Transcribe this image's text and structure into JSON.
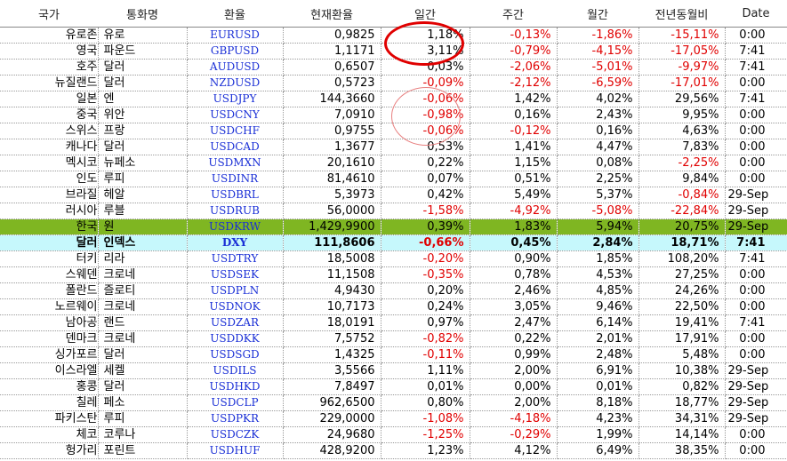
{
  "headers": [
    "국가",
    "통화명",
    "환율",
    "현재환율",
    "일간",
    "주간",
    "월간",
    "전년동월비",
    "Date"
  ],
  "rows": [
    {
      "country": "유로존",
      "currency": "유로",
      "ticker": "EURUSD",
      "rate": "0,9825",
      "daily": "1,18%",
      "weekly": "-0,13%",
      "monthly": "-1,86%",
      "yoy": "-15,11%",
      "date": "0:00"
    },
    {
      "country": "영국",
      "currency": "파운드",
      "ticker": "GBPUSD",
      "rate": "1,1171",
      "daily": "3,11%",
      "weekly": "-0,79%",
      "monthly": "-4,15%",
      "yoy": "-17,05%",
      "date": "7:41"
    },
    {
      "country": "호주",
      "currency": "달러",
      "ticker": "AUDUSD",
      "rate": "0,6507",
      "daily": "0,03%",
      "weekly": "-2,06%",
      "monthly": "-5,01%",
      "yoy": "-9,97%",
      "date": "7:41"
    },
    {
      "country": "뉴질랜드",
      "currency": "달러",
      "ticker": "NZDUSD",
      "rate": "0,5723",
      "daily": "-0,09%",
      "weekly": "-2,12%",
      "monthly": "-6,59%",
      "yoy": "-17,01%",
      "date": "0:00"
    },
    {
      "country": "일본",
      "currency": "엔",
      "ticker": "USDJPY",
      "rate": "144,3660",
      "daily": "-0,06%",
      "weekly": "1,42%",
      "monthly": "4,02%",
      "yoy": "29,56%",
      "date": "7:41"
    },
    {
      "country": "중국",
      "currency": "위안",
      "ticker": "USDCNY",
      "rate": "7,0910",
      "daily": "-0,98%",
      "weekly": "0,16%",
      "monthly": "2,43%",
      "yoy": "9,95%",
      "date": "0:00"
    },
    {
      "country": "스위스",
      "currency": "프랑",
      "ticker": "USDCHF",
      "rate": "0,9755",
      "daily": "-0,06%",
      "weekly": "-0,12%",
      "monthly": "0,16%",
      "yoy": "4,63%",
      "date": "0:00"
    },
    {
      "country": "캐나다",
      "currency": "달러",
      "ticker": "USDCAD",
      "rate": "1,3677",
      "daily": "0,53%",
      "weekly": "1,41%",
      "monthly": "4,47%",
      "yoy": "7,83%",
      "date": "0:00"
    },
    {
      "country": "멕시코",
      "currency": "뉴페소",
      "ticker": "USDMXN",
      "rate": "20,1610",
      "daily": "0,22%",
      "weekly": "1,15%",
      "monthly": "0,08%",
      "yoy": "-2,25%",
      "date": "0:00"
    },
    {
      "country": "인도",
      "currency": "루피",
      "ticker": "USDINR",
      "rate": "81,4610",
      "daily": "0,07%",
      "weekly": "0,51%",
      "monthly": "2,25%",
      "yoy": "9,84%",
      "date": "0:00"
    },
    {
      "country": "브라질",
      "currency": "헤알",
      "ticker": "USDBRL",
      "rate": "5,3973",
      "daily": "0,42%",
      "weekly": "5,49%",
      "monthly": "5,37%",
      "yoy": "-0,84%",
      "date": "29-Sep"
    },
    {
      "country": "러시아",
      "currency": "루블",
      "ticker": "USDRUB",
      "rate": "56,0000",
      "daily": "-1,58%",
      "weekly": "-4,92%",
      "monthly": "-5,08%",
      "yoy": "-22,84%",
      "date": "29-Sep"
    },
    {
      "country": "한국",
      "currency": "원",
      "ticker": "USDKRW",
      "rate": "1,429,9900",
      "daily": "0,39%",
      "weekly": "1,83%",
      "monthly": "5,94%",
      "yoy": "20,75%",
      "date": "29-Sep",
      "highlight": "krw"
    },
    {
      "country": "달러",
      "currency": "인덱스",
      "ticker": "DXY",
      "rate": "111,8606",
      "daily": "-0,66%",
      "weekly": "0,45%",
      "monthly": "2,84%",
      "yoy": "18,71%",
      "date": "7:41",
      "highlight": "dxy"
    },
    {
      "country": "터키",
      "currency": "리라",
      "ticker": "USDTRY",
      "rate": "18,5008",
      "daily": "-0,20%",
      "weekly": "0,90%",
      "monthly": "1,85%",
      "yoy": "108,20%",
      "date": "7:41"
    },
    {
      "country": "스웨덴",
      "currency": "크로네",
      "ticker": "USDSEK",
      "rate": "11,1508",
      "daily": "-0,35%",
      "weekly": "0,78%",
      "monthly": "4,53%",
      "yoy": "27,25%",
      "date": "0:00"
    },
    {
      "country": "폴란드",
      "currency": "즐로티",
      "ticker": "USDPLN",
      "rate": "4,9430",
      "daily": "0,20%",
      "weekly": "2,46%",
      "monthly": "4,85%",
      "yoy": "24,26%",
      "date": "0:00"
    },
    {
      "country": "노르웨이",
      "currency": "크로네",
      "ticker": "USDNOK",
      "rate": "10,7173",
      "daily": "0,24%",
      "weekly": "3,05%",
      "monthly": "9,46%",
      "yoy": "22,50%",
      "date": "0:00"
    },
    {
      "country": "남아공",
      "currency": "랜드",
      "ticker": "USDZAR",
      "rate": "18,0191",
      "daily": "0,97%",
      "weekly": "2,47%",
      "monthly": "6,14%",
      "yoy": "19,41%",
      "date": "7:41"
    },
    {
      "country": "덴마크",
      "currency": "크로네",
      "ticker": "USDDKK",
      "rate": "7,5752",
      "daily": "-0,82%",
      "weekly": "0,22%",
      "monthly": "2,01%",
      "yoy": "17,91%",
      "date": "0:00"
    },
    {
      "country": "싱가포르",
      "currency": "달러",
      "ticker": "USDSGD",
      "rate": "1,4325",
      "daily": "-0,11%",
      "weekly": "0,99%",
      "monthly": "2,48%",
      "yoy": "5,48%",
      "date": "0:00"
    },
    {
      "country": "이스라엘",
      "currency": "세켈",
      "ticker": "USDILS",
      "rate": "3,5566",
      "daily": "1,11%",
      "weekly": "2,00%",
      "monthly": "6,91%",
      "yoy": "10,38%",
      "date": "29-Sep"
    },
    {
      "country": "홍콩",
      "currency": "달러",
      "ticker": "USDHKD",
      "rate": "7,8497",
      "daily": "0,01%",
      "weekly": "0,00%",
      "monthly": "0,01%",
      "yoy": "0,82%",
      "date": "29-Sep"
    },
    {
      "country": "칠레",
      "currency": "페소",
      "ticker": "USDCLP",
      "rate": "962,6500",
      "daily": "0,80%",
      "weekly": "2,00%",
      "monthly": "8,18%",
      "yoy": "18,77%",
      "date": "29-Sep"
    },
    {
      "country": "파키스탄",
      "currency": "루피",
      "ticker": "USDPKR",
      "rate": "229,0000",
      "daily": "-1,08%",
      "weekly": "-4,18%",
      "monthly": "4,23%",
      "yoy": "34,31%",
      "date": "29-Sep"
    },
    {
      "country": "체코",
      "currency": "코루나",
      "ticker": "USDCZK",
      "rate": "24,9680",
      "daily": "-1,25%",
      "weekly": "-0,29%",
      "monthly": "1,99%",
      "yoy": "14,14%",
      "date": "0:00"
    },
    {
      "country": "헝가리",
      "currency": "포린트",
      "ticker": "USDHUF",
      "rate": "428,9200",
      "daily": "1,23%",
      "weekly": "4,12%",
      "monthly": "6,49%",
      "yoy": "38,35%",
      "date": "0:00"
    }
  ],
  "annotations": {
    "circle_color": "#e00000"
  }
}
